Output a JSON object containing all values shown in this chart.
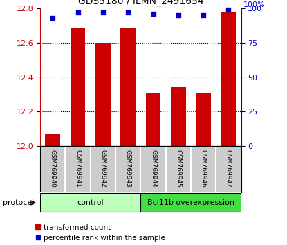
{
  "title": "GDS5180 / ILMN_2491654",
  "samples": [
    "GSM769940",
    "GSM769941",
    "GSM769942",
    "GSM769943",
    "GSM769944",
    "GSM769945",
    "GSM769946",
    "GSM769947"
  ],
  "bar_values": [
    12.07,
    12.69,
    12.6,
    12.69,
    12.31,
    12.34,
    12.31,
    12.78
  ],
  "dot_values": [
    93,
    97,
    97,
    97,
    96,
    95,
    95,
    99
  ],
  "ylim_left": [
    12.0,
    12.8
  ],
  "ylim_right": [
    0,
    100
  ],
  "yticks_left": [
    12.0,
    12.2,
    12.4,
    12.6,
    12.8
  ],
  "yticks_right": [
    0,
    25,
    50,
    75,
    100
  ],
  "bar_color": "#cc0000",
  "dot_color": "#0000cc",
  "bar_width": 0.6,
  "groups": [
    {
      "label": "control",
      "start": 0,
      "end": 3,
      "color": "#bbffbb"
    },
    {
      "label": "Bcl11b overexpression",
      "start": 4,
      "end": 7,
      "color": "#44dd44"
    }
  ],
  "protocol_label": "protocol",
  "legend_bar_label": "transformed count",
  "legend_dot_label": "percentile rank within the sample",
  "grid_color": "#000000",
  "background_color": "#ffffff",
  "tick_label_color_left": "#cc0000",
  "tick_label_color_right": "#0000cc",
  "sample_box_color": "#cccccc",
  "sample_divider_color": "#ffffff"
}
